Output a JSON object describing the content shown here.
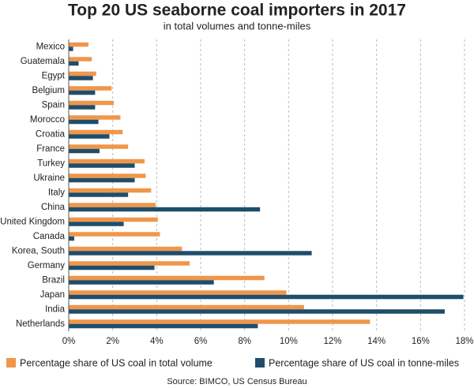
{
  "chart_data": {
    "type": "hbar",
    "title": "Top 20 US seaborne coal importers in 2017",
    "subtitle": "in total volumes and tonne-miles",
    "source": "Source: BIMCO, US Census Bureau",
    "categories": [
      "Mexico",
      "Guatemala",
      "Egypt",
      "Belgium",
      "Spain",
      "Morocco",
      "Croatia",
      "France",
      "Turkey",
      "Ukraine",
      "Italy",
      "China",
      "United Kingdom",
      "Canada",
      "Korea, South",
      "Germany",
      "Brazil",
      "Japan",
      "India",
      "Netherlands"
    ],
    "series": [
      {
        "name": "Percentage share of US coal in total volume",
        "color": "#f0964a",
        "values": [
          0.9,
          1.05,
          1.25,
          1.95,
          2.05,
          2.35,
          2.45,
          2.7,
          3.45,
          3.5,
          3.75,
          3.95,
          4.05,
          4.15,
          5.15,
          5.5,
          8.9,
          9.9,
          10.7,
          13.7
        ]
      },
      {
        "name": "Percentage share of US coal in tonne-miles",
        "color": "#1f4e6b",
        "values": [
          0.2,
          0.45,
          1.1,
          1.2,
          1.2,
          1.35,
          1.85,
          1.4,
          3.0,
          3.0,
          2.7,
          8.7,
          2.5,
          0.25,
          11.05,
          3.9,
          6.6,
          17.95,
          17.1,
          8.6
        ]
      }
    ],
    "xlim": [
      0,
      18
    ],
    "xticks": [
      {
        "value": 0,
        "label": "0%"
      },
      {
        "value": 2,
        "label": "2%"
      },
      {
        "value": 4,
        "label": "4%"
      },
      {
        "value": 6,
        "label": "6%"
      },
      {
        "value": 8,
        "label": "8%"
      },
      {
        "value": 10,
        "label": "10%"
      },
      {
        "value": 12,
        "label": "12%"
      },
      {
        "value": 14,
        "label": "14%"
      },
      {
        "value": 16,
        "label": "16%"
      },
      {
        "value": 18,
        "label": "18%"
      }
    ],
    "grid": true
  }
}
